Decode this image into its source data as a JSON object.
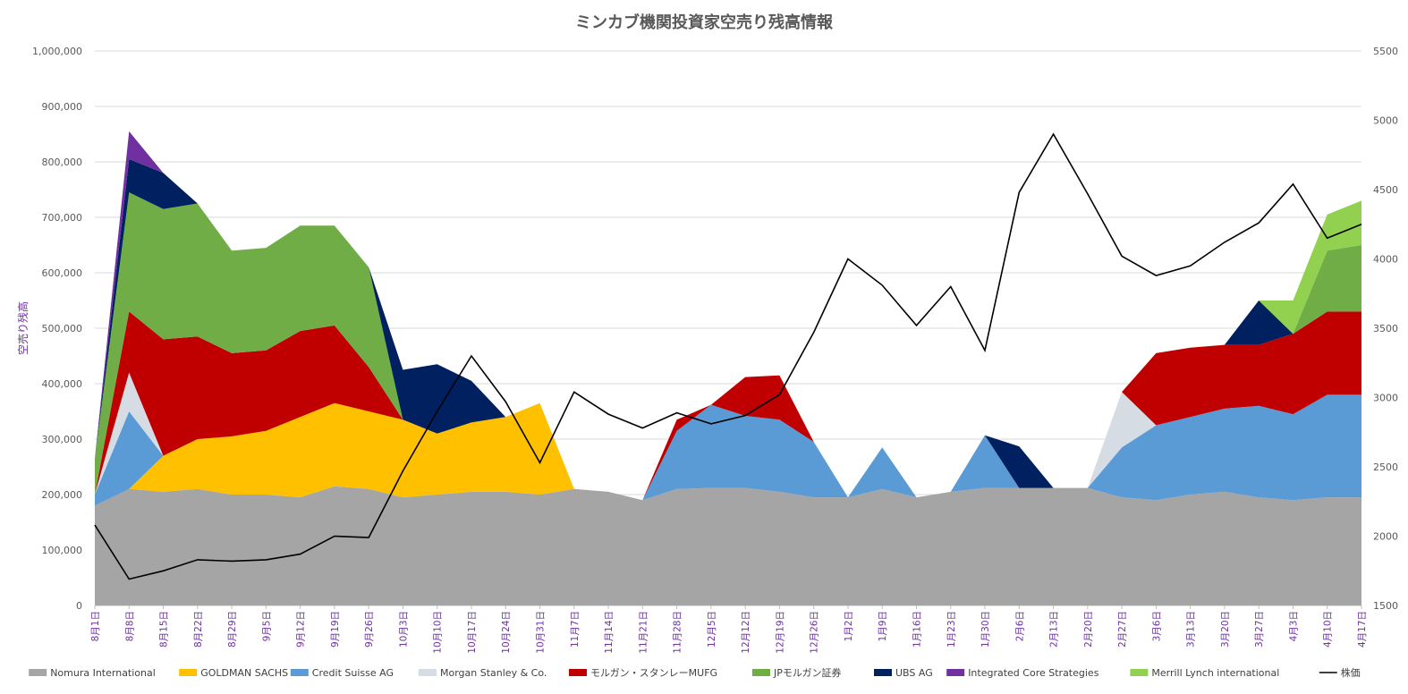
{
  "chart_data": {
    "type": "area",
    "title": "ミンカブ機関投資家空売り残高情報",
    "ylabel": "空売り残高",
    "ylim": [
      0,
      1000000
    ],
    "y2lim": [
      1500,
      5500
    ],
    "yticks": [
      "0",
      "100,000",
      "200,000",
      "300,000",
      "400,000",
      "500,000",
      "600,000",
      "700,000",
      "800,000",
      "900,000",
      "1,000,000"
    ],
    "y2ticks": [
      "1500",
      "2000",
      "2500",
      "3000",
      "3500",
      "4000",
      "4500",
      "5000",
      "5500"
    ],
    "categories": [
      "8月1日",
      "8月8日",
      "8月15日",
      "8月22日",
      "8月29日",
      "9月5日",
      "9月12日",
      "9月19日",
      "9月26日",
      "10月3日",
      "10月10日",
      "10月17日",
      "10月24日",
      "10月31日",
      "11月7日",
      "11月14日",
      "11月21日",
      "11月28日",
      "12月5日",
      "12月12日",
      "12月19日",
      "12月26日",
      "1月2日",
      "1月9日",
      "1月16日",
      "1月23日",
      "1月30日",
      "2月6日",
      "2月13日",
      "2月20日",
      "2月27日",
      "3月6日",
      "3月13日",
      "3月20日",
      "3月27日",
      "4月3日",
      "4月10日",
      "4月17日"
    ],
    "series": [
      {
        "name": "Nomura International",
        "color": "#a5a5a5",
        "values": [
          180000,
          210000,
          205000,
          210000,
          200000,
          200000,
          195000,
          215000,
          210000,
          195000,
          200000,
          205000,
          205000,
          200000,
          210000,
          205000,
          190000,
          210000,
          212000,
          212000,
          205000,
          195000,
          195000,
          210000,
          195000,
          205000,
          212000,
          212000,
          212000,
          212000,
          195000,
          190000,
          200000,
          205000,
          195000,
          190000,
          195000,
          195000
        ]
      },
      {
        "name": "GOLDMAN SACHS",
        "color": "#ffc000",
        "values": [
          0,
          0,
          65000,
          90000,
          105000,
          115000,
          145000,
          150000,
          140000,
          140000,
          110000,
          125000,
          135000,
          165000,
          0,
          0,
          0,
          0,
          0,
          0,
          0,
          0,
          0,
          0,
          0,
          0,
          0,
          0,
          0,
          0,
          0,
          0,
          0,
          0,
          0,
          0,
          0,
          0
        ]
      },
      {
        "name": "Credit Suisse AG",
        "color": "#5b9bd5",
        "values": [
          20000,
          140000,
          0,
          0,
          0,
          0,
          0,
          0,
          0,
          0,
          0,
          0,
          0,
          0,
          0,
          0,
          0,
          105000,
          150000,
          130000,
          130000,
          100000,
          0,
          75000,
          0,
          0,
          95000,
          0,
          0,
          0,
          90000,
          135000,
          140000,
          150000,
          165000,
          155000,
          185000,
          185000
        ]
      },
      {
        "name": "Morgan Stanley & Co.",
        "color": "#d6dce4",
        "values": [
          0,
          70000,
          0,
          0,
          0,
          0,
          0,
          0,
          0,
          0,
          0,
          0,
          0,
          0,
          0,
          0,
          0,
          0,
          0,
          0,
          0,
          0,
          0,
          0,
          0,
          0,
          0,
          0,
          0,
          0,
          100000,
          0,
          0,
          0,
          0,
          0,
          0,
          0
        ]
      },
      {
        "name": "モルガン・スタンレーMUFG",
        "color": "#c00000",
        "values": [
          0,
          110000,
          210000,
          185000,
          150000,
          145000,
          155000,
          140000,
          80000,
          0,
          0,
          0,
          0,
          0,
          0,
          0,
          0,
          20000,
          0,
          70000,
          80000,
          0,
          0,
          0,
          0,
          0,
          0,
          0,
          0,
          0,
          0,
          130000,
          125000,
          115000,
          110000,
          145000,
          150000,
          150000
        ]
      },
      {
        "name": "JPモルガン証券",
        "color": "#70ad47",
        "values": [
          65000,
          215000,
          235000,
          240000,
          185000,
          185000,
          190000,
          180000,
          180000,
          0,
          0,
          0,
          0,
          0,
          0,
          0,
          0,
          0,
          0,
          0,
          0,
          0,
          0,
          0,
          0,
          0,
          0,
          0,
          0,
          0,
          0,
          0,
          0,
          0,
          0,
          0,
          110000,
          120000
        ]
      },
      {
        "name": "UBS AG",
        "color": "#002060",
        "values": [
          0,
          60000,
          65000,
          0,
          0,
          0,
          0,
          0,
          0,
          90000,
          125000,
          75000,
          0,
          0,
          0,
          0,
          0,
          0,
          0,
          0,
          0,
          0,
          0,
          0,
          0,
          0,
          0,
          75000,
          0,
          0,
          0,
          0,
          0,
          0,
          80000,
          0,
          0,
          0
        ]
      },
      {
        "name": "Integrated Core Strategies",
        "color": "#7030a0",
        "values": [
          0,
          50000,
          0,
          0,
          0,
          0,
          0,
          0,
          0,
          0,
          0,
          0,
          0,
          0,
          0,
          0,
          0,
          0,
          0,
          0,
          0,
          0,
          0,
          0,
          0,
          0,
          0,
          0,
          0,
          0,
          0,
          0,
          0,
          0,
          0,
          0,
          0,
          0
        ]
      },
      {
        "name": "Merrill Lynch international",
        "color": "#92d050",
        "values": [
          0,
          0,
          0,
          0,
          0,
          0,
          0,
          0,
          0,
          0,
          0,
          0,
          0,
          0,
          0,
          0,
          0,
          0,
          0,
          0,
          0,
          0,
          0,
          0,
          0,
          0,
          0,
          0,
          0,
          0,
          0,
          0,
          0,
          0,
          0,
          60000,
          65000,
          80000
        ]
      }
    ],
    "line": {
      "name": "株価",
      "color": "#000000",
      "values": [
        2080,
        1690,
        1750,
        1830,
        1820,
        1830,
        1870,
        2000,
        1990,
        2470,
        2900,
        3300,
        2970,
        2530,
        3040,
        2880,
        2780,
        2890,
        2810,
        2870,
        3020,
        3470,
        4000,
        3810,
        3520,
        3800,
        3340,
        4480,
        4900,
        4470,
        4020,
        3880,
        3950,
        4120,
        4260,
        4540,
        4150,
        4250
      ]
    },
    "legend": "bottom"
  }
}
